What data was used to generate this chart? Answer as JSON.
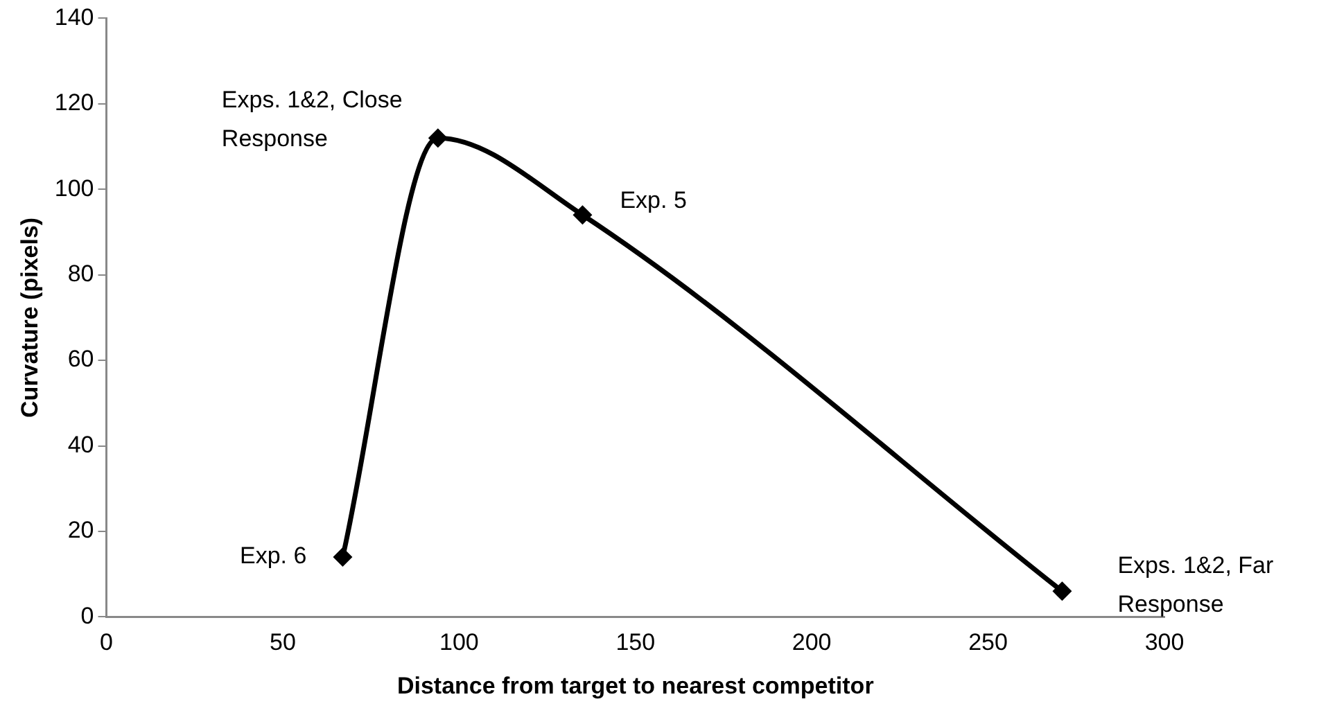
{
  "chart_data": {
    "type": "line",
    "xlabel": "Distance from target to nearest competitor",
    "ylabel": "Curvature (pixels)",
    "x": [
      67,
      94,
      135,
      271
    ],
    "series": [
      {
        "color": "#000000",
        "values": [
          14,
          112,
          94,
          6
        ]
      }
    ],
    "xlim": [
      0,
      300
    ],
    "xticks": [
      0,
      50,
      100,
      150,
      200,
      250,
      300
    ],
    "ylim": [
      0,
      140
    ],
    "yticks": [
      0,
      20,
      40,
      60,
      80,
      100,
      120,
      140
    ],
    "grid": false,
    "legend": false,
    "marker": "diamond",
    "line_style": "solid",
    "annotations": [
      {
        "text": "Exp. 6",
        "x": 67,
        "y": 14
      },
      {
        "text": "Exps. 1&2, Close Response",
        "x": 94,
        "y": 112
      },
      {
        "text": "Exp. 5",
        "x": 135,
        "y": 94
      },
      {
        "text": "Exps. 1&2, Far Response",
        "x": 271,
        "y": 6
      }
    ]
  }
}
